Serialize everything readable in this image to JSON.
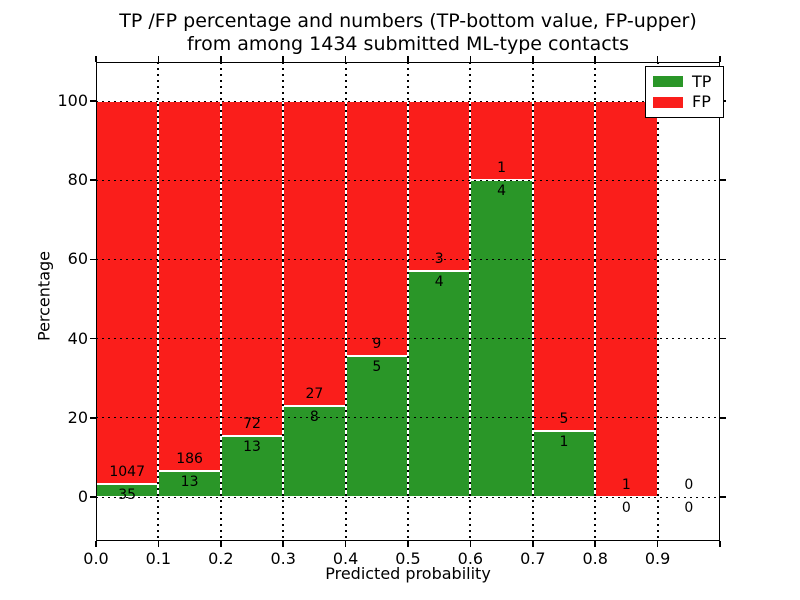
{
  "title_line1": "TP /FP percentage and numbers (TP-bottom value, FP-upper)",
  "title_line2": "from among 1434 submitted ML-type contacts",
  "chart_data": {
    "type": "bar",
    "stacked": true,
    "title": "TP /FP percentage and numbers (TP-bottom value, FP-upper) from among 1434 submitted ML-type contacts",
    "xlabel": "Predicted probability",
    "ylabel": "Percentage",
    "xlim": [
      0.0,
      1.0
    ],
    "ylim": [
      -11,
      110
    ],
    "bin_width": 0.1,
    "grid": "dotted",
    "legend_position": "upper-right",
    "x_tick_labels": [
      "0.0",
      "0.1",
      "0.2",
      "0.3",
      "0.4",
      "0.5",
      "0.6",
      "0.7",
      "0.8",
      "0.9"
    ],
    "y_tick_labels": [
      "0",
      "20",
      "40",
      "60",
      "80",
      "100"
    ],
    "y_tick_values": [
      0,
      20,
      40,
      60,
      80,
      100
    ],
    "colors": {
      "tp": "#2a9628",
      "fp": "#fa1e1b"
    },
    "legend": [
      {
        "label": "TP",
        "color": "#2a9628"
      },
      {
        "label": "FP",
        "color": "#fa1e1b"
      }
    ],
    "bins": [
      {
        "range": "0.0-0.1",
        "tp": 35,
        "fp": 1047,
        "tp_pct": 3.2
      },
      {
        "range": "0.1-0.2",
        "tp": 13,
        "fp": 186,
        "tp_pct": 6.5
      },
      {
        "range": "0.2-0.3",
        "tp": 13,
        "fp": 72,
        "tp_pct": 15.3
      },
      {
        "range": "0.3-0.4",
        "tp": 8,
        "fp": 27,
        "tp_pct": 22.9
      },
      {
        "range": "0.4-0.5",
        "tp": 5,
        "fp": 9,
        "tp_pct": 35.7
      },
      {
        "range": "0.5-0.6",
        "tp": 4,
        "fp": 3,
        "tp_pct": 57.1
      },
      {
        "range": "0.6-0.7",
        "tp": 4,
        "fp": 1,
        "tp_pct": 80.0
      },
      {
        "range": "0.7-0.8",
        "tp": 1,
        "fp": 5,
        "tp_pct": 16.7
      },
      {
        "range": "0.8-0.9",
        "tp": 0,
        "fp": 1,
        "tp_pct": 0.0
      },
      {
        "range": "0.9-1.0",
        "tp": 0,
        "fp": 0,
        "tp_pct": null
      }
    ]
  }
}
